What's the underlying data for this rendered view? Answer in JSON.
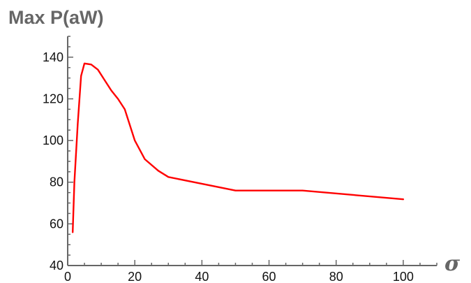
{
  "chart_data": {
    "type": "line",
    "title": "",
    "ylabel": "Max P(aW)",
    "xlabel": "σ",
    "xlim": [
      0,
      110
    ],
    "ylim": [
      40,
      150
    ],
    "xticks": [
      0,
      20,
      40,
      60,
      80,
      100
    ],
    "yticks": [
      40,
      60,
      80,
      100,
      120,
      140
    ],
    "grid": false,
    "series": [
      {
        "color": "#ff0000",
        "x": [
          1.5,
          2,
          3,
          4,
          5,
          7,
          9,
          11,
          13,
          15,
          17,
          20,
          23,
          27,
          30,
          50,
          70,
          100
        ],
        "y": [
          56,
          80,
          108,
          131,
          137,
          136.5,
          134,
          129,
          124,
          120,
          115,
          100,
          91,
          85.5,
          82.5,
          76,
          76,
          71.8
        ]
      }
    ]
  }
}
